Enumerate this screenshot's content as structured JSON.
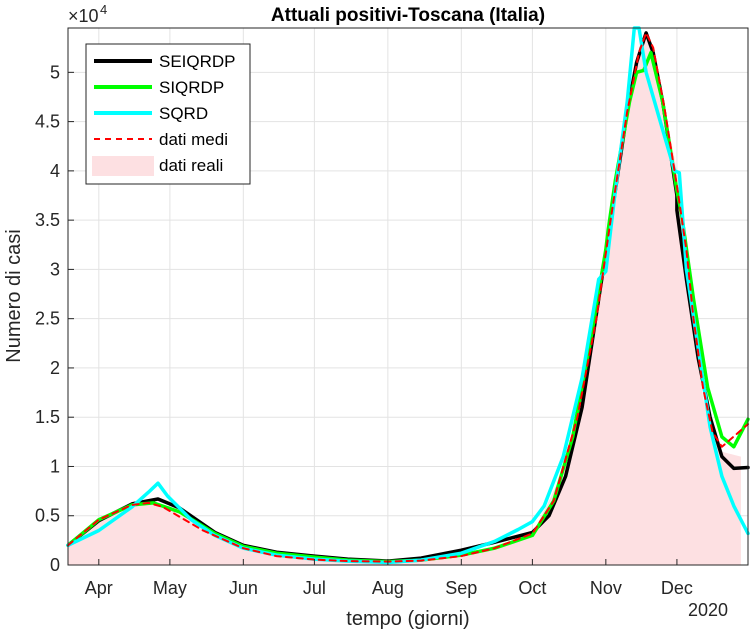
{
  "chart_data": {
    "type": "line",
    "title": "Attuali positivi-Toscana (Italia)",
    "xlabel": "tempo (giorni)",
    "ylabel": "Numero di casi",
    "y_exponent_label": "×10",
    "y_exponent": "4",
    "year_label": "2020",
    "ylim": [
      0,
      54500
    ],
    "xlim": [
      "2020-03-19",
      "2020-12-31"
    ],
    "grid": true,
    "legend_position": "top-left",
    "x_ticks": [
      {
        "date": "2020-04-01",
        "label": "Apr"
      },
      {
        "date": "2020-05-01",
        "label": "May"
      },
      {
        "date": "2020-06-01",
        "label": "Jun"
      },
      {
        "date": "2020-07-01",
        "label": "Jul"
      },
      {
        "date": "2020-08-01",
        "label": "Aug"
      },
      {
        "date": "2020-09-01",
        "label": "Sep"
      },
      {
        "date": "2020-10-01",
        "label": "Oct"
      },
      {
        "date": "2020-11-01",
        "label": "Nov"
      },
      {
        "date": "2020-12-01",
        "label": "Dec"
      }
    ],
    "y_ticks": [
      {
        "value": 0,
        "label": "0"
      },
      {
        "value": 5000,
        "label": "0.5"
      },
      {
        "value": 10000,
        "label": "1"
      },
      {
        "value": 15000,
        "label": "1.5"
      },
      {
        "value": 20000,
        "label": "2"
      },
      {
        "value": 25000,
        "label": "2.5"
      },
      {
        "value": 30000,
        "label": "3"
      },
      {
        "value": 35000,
        "label": "3.5"
      },
      {
        "value": 40000,
        "label": "4"
      },
      {
        "value": 45000,
        "label": "4.5"
      },
      {
        "value": 50000,
        "label": "5"
      }
    ],
    "series": [
      {
        "name": "dati reali",
        "kind": "area",
        "color": "#fde0e2",
        "points": [
          [
            "2020-03-19",
            2000
          ],
          [
            "2020-04-01",
            4400
          ],
          [
            "2020-04-15",
            6000
          ],
          [
            "2020-04-24",
            6300
          ],
          [
            "2020-05-01",
            5600
          ],
          [
            "2020-05-15",
            3900
          ],
          [
            "2020-06-01",
            2100
          ],
          [
            "2020-06-15",
            1100
          ],
          [
            "2020-07-01",
            700
          ],
          [
            "2020-07-15",
            450
          ],
          [
            "2020-08-01",
            300
          ],
          [
            "2020-08-15",
            400
          ],
          [
            "2020-09-01",
            900
          ],
          [
            "2020-09-15",
            1600
          ],
          [
            "2020-10-01",
            3100
          ],
          [
            "2020-10-15",
            10000
          ],
          [
            "2020-10-25",
            22000
          ],
          [
            "2020-11-01",
            33000
          ],
          [
            "2020-11-08",
            43000
          ],
          [
            "2020-11-12",
            49000
          ],
          [
            "2020-11-15",
            51500
          ],
          [
            "2020-11-18",
            53500
          ],
          [
            "2020-11-22",
            51000
          ],
          [
            "2020-11-27",
            45000
          ],
          [
            "2020-12-01",
            40000
          ],
          [
            "2020-12-04",
            35000
          ],
          [
            "2020-12-08",
            25000
          ],
          [
            "2020-12-12",
            17000
          ],
          [
            "2020-12-16",
            13000
          ],
          [
            "2020-12-20",
            11500
          ],
          [
            "2020-12-28",
            11000
          ],
          [
            "2020-12-28",
            0
          ]
        ]
      },
      {
        "name": "SEIQRDP",
        "kind": "line",
        "color": "#000000",
        "width": 3.5,
        "points": [
          [
            "2020-03-19",
            2000
          ],
          [
            "2020-04-01",
            4500
          ],
          [
            "2020-04-15",
            6200
          ],
          [
            "2020-04-26",
            6700
          ],
          [
            "2020-05-05",
            5800
          ],
          [
            "2020-05-20",
            3300
          ],
          [
            "2020-06-01",
            2000
          ],
          [
            "2020-06-15",
            1300
          ],
          [
            "2020-07-01",
            900
          ],
          [
            "2020-07-15",
            600
          ],
          [
            "2020-08-01",
            400
          ],
          [
            "2020-08-15",
            700
          ],
          [
            "2020-09-01",
            1500
          ],
          [
            "2020-09-15",
            2300
          ],
          [
            "2020-10-01",
            3300
          ],
          [
            "2020-10-08",
            5000
          ],
          [
            "2020-10-15",
            9000
          ],
          [
            "2020-10-22",
            16000
          ],
          [
            "2020-10-29",
            27000
          ],
          [
            "2020-11-05",
            38000
          ],
          [
            "2020-11-10",
            46000
          ],
          [
            "2020-11-14",
            51000
          ],
          [
            "2020-11-18",
            54000
          ],
          [
            "2020-11-21",
            52000
          ],
          [
            "2020-11-25",
            47000
          ],
          [
            "2020-12-01",
            37500
          ],
          [
            "2020-12-01",
            36000
          ],
          [
            "2020-12-05",
            29000
          ],
          [
            "2020-12-10",
            21000
          ],
          [
            "2020-12-15",
            15000
          ],
          [
            "2020-12-20",
            11000
          ],
          [
            "2020-12-25",
            9800
          ],
          [
            "2020-12-31",
            9900
          ]
        ]
      },
      {
        "name": "SIQRDP",
        "kind": "line",
        "color": "#00ff00",
        "width": 3.5,
        "points": [
          [
            "2020-03-19",
            2000
          ],
          [
            "2020-04-01",
            4600
          ],
          [
            "2020-04-15",
            6100
          ],
          [
            "2020-04-24",
            6300
          ],
          [
            "2020-05-05",
            5400
          ],
          [
            "2020-05-20",
            3200
          ],
          [
            "2020-06-01",
            1900
          ],
          [
            "2020-06-15",
            1200
          ],
          [
            "2020-07-01",
            800
          ],
          [
            "2020-07-15",
            500
          ],
          [
            "2020-08-01",
            350
          ],
          [
            "2020-08-15",
            500
          ],
          [
            "2020-09-01",
            1000
          ],
          [
            "2020-09-15",
            1700
          ],
          [
            "2020-10-01",
            3000
          ],
          [
            "2020-10-10",
            6500
          ],
          [
            "2020-10-18",
            13000
          ],
          [
            "2020-10-25",
            22000
          ],
          [
            "2020-11-01",
            32000
          ],
          [
            "2020-11-02",
            34000
          ],
          [
            "2020-11-05",
            39000
          ],
          [
            "2020-11-11",
            47000
          ],
          [
            "2020-11-14",
            50000
          ],
          [
            "2020-11-17",
            50200
          ],
          [
            "2020-11-20",
            52000
          ],
          [
            "2020-11-25",
            47000
          ],
          [
            "2020-12-01",
            38000
          ],
          [
            "2020-12-03",
            35500
          ],
          [
            "2020-12-08",
            27000
          ],
          [
            "2020-12-14",
            18000
          ],
          [
            "2020-12-20",
            13000
          ],
          [
            "2020-12-25",
            12000
          ],
          [
            "2020-12-31",
            14800
          ]
        ]
      },
      {
        "name": "SQRD",
        "kind": "line",
        "color": "#00ffff",
        "width": 3.5,
        "points": [
          [
            "2020-03-19",
            2000
          ],
          [
            "2020-04-01",
            3500
          ],
          [
            "2020-04-15",
            5900
          ],
          [
            "2020-04-22",
            7400
          ],
          [
            "2020-04-26",
            8300
          ],
          [
            "2020-04-30",
            7000
          ],
          [
            "2020-05-10",
            4600
          ],
          [
            "2020-05-20",
            3000
          ],
          [
            "2020-06-01",
            1700
          ],
          [
            "2020-06-15",
            1000
          ],
          [
            "2020-07-01",
            600
          ],
          [
            "2020-07-15",
            400
          ],
          [
            "2020-08-01",
            250
          ],
          [
            "2020-08-15",
            500
          ],
          [
            "2020-09-01",
            1200
          ],
          [
            "2020-09-15",
            2400
          ],
          [
            "2020-09-25",
            3600
          ],
          [
            "2020-10-01",
            4400
          ],
          [
            "2020-10-06",
            6000
          ],
          [
            "2020-10-14",
            11000
          ],
          [
            "2020-10-22",
            19000
          ],
          [
            "2020-10-29",
            29000
          ],
          [
            "2020-11-01",
            29800
          ],
          [
            "2020-11-05",
            38000
          ],
          [
            "2020-11-10",
            47000
          ],
          [
            "2020-11-13",
            54500
          ],
          [
            "2020-11-15",
            54500
          ],
          [
            "2020-11-18",
            50000
          ],
          [
            "2020-11-24",
            45000
          ],
          [
            "2020-11-30",
            40000
          ],
          [
            "2020-12-02",
            39800
          ],
          [
            "2020-12-05",
            30000
          ],
          [
            "2020-12-10",
            22000
          ],
          [
            "2020-12-15",
            14000
          ],
          [
            "2020-12-20",
            9000
          ],
          [
            "2020-12-25",
            6000
          ],
          [
            "2020-12-31",
            3200
          ]
        ]
      },
      {
        "name": "dati medi",
        "kind": "dashed",
        "color": "#ff0000",
        "width": 2,
        "points": [
          [
            "2020-03-19",
            2000
          ],
          [
            "2020-04-01",
            4600
          ],
          [
            "2020-04-15",
            6100
          ],
          [
            "2020-04-22",
            6300
          ],
          [
            "2020-04-28",
            5900
          ],
          [
            "2020-05-05",
            4900
          ],
          [
            "2020-05-15",
            3500
          ],
          [
            "2020-06-01",
            1700
          ],
          [
            "2020-06-15",
            900
          ],
          [
            "2020-07-01",
            550
          ],
          [
            "2020-07-15",
            400
          ],
          [
            "2020-08-01",
            350
          ],
          [
            "2020-08-15",
            450
          ],
          [
            "2020-09-01",
            900
          ],
          [
            "2020-09-15",
            1700
          ],
          [
            "2020-10-01",
            3200
          ],
          [
            "2020-10-10",
            6500
          ],
          [
            "2020-10-20",
            15000
          ],
          [
            "2020-10-28",
            25000
          ],
          [
            "2020-11-03",
            35000
          ],
          [
            "2020-11-10",
            46000
          ],
          [
            "2020-11-15",
            52000
          ],
          [
            "2020-11-18",
            54000
          ],
          [
            "2020-11-21",
            52500
          ],
          [
            "2020-11-26",
            46000
          ],
          [
            "2020-12-01",
            38500
          ],
          [
            "2020-12-05",
            32000
          ],
          [
            "2020-12-08",
            25000
          ],
          [
            "2020-12-12",
            18000
          ],
          [
            "2020-12-16",
            13500
          ],
          [
            "2020-12-20",
            12000
          ],
          [
            "2020-12-31",
            14300
          ]
        ]
      }
    ],
    "legend_order": [
      "SEIQRDP",
      "SIQRDP",
      "SQRD",
      "dati medi",
      "dati reali"
    ]
  }
}
